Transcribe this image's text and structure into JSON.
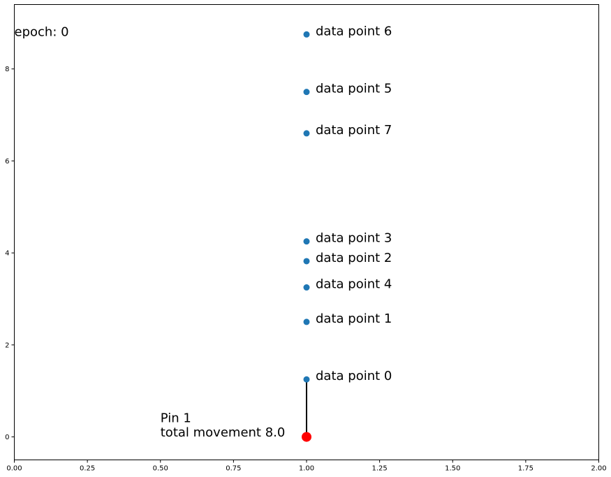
{
  "chart_data": {
    "type": "scatter",
    "xlim": [
      0,
      2
    ],
    "ylim": [
      -0.5,
      9.4
    ],
    "xticks": [
      0,
      0.25,
      0.5,
      0.75,
      1,
      1.25,
      1.5,
      1.75,
      2
    ],
    "xtick_labels": [
      "0.00",
      "0.25",
      "0.50",
      "0.75",
      "1.00",
      "1.25",
      "1.50",
      "1.75",
      "2.00"
    ],
    "yticks": [
      0,
      2,
      4,
      6,
      8
    ],
    "ytick_labels": [
      "0",
      "2",
      "4",
      "6",
      "8"
    ],
    "grid": false,
    "points": [
      {
        "label": "data point 0",
        "x": 1.0,
        "y": 1.25
      },
      {
        "label": "data point 1",
        "x": 1.0,
        "y": 2.5
      },
      {
        "label": "data point 2",
        "x": 1.0,
        "y": 3.82
      },
      {
        "label": "data point 3",
        "x": 1.0,
        "y": 4.25
      },
      {
        "label": "data point 4",
        "x": 1.0,
        "y": 3.25
      },
      {
        "label": "data point 5",
        "x": 1.0,
        "y": 7.5
      },
      {
        "label": "data point 6",
        "x": 1.0,
        "y": 8.75
      },
      {
        "label": "data point 7",
        "x": 1.0,
        "y": 6.6
      }
    ],
    "point_color": "#1f77b4",
    "pin": {
      "x": 1.0,
      "y": 0.0,
      "color": "#ff0000",
      "line_to": {
        "x": 1.0,
        "y": 1.25
      }
    },
    "pin_text": {
      "line1": "Pin 1",
      "line2": "total movement 8.0",
      "x": 0.5,
      "y": 0.0
    },
    "epoch_text": {
      "text": "epoch: 0",
      "x": 0.0,
      "y": 8.75
    }
  }
}
